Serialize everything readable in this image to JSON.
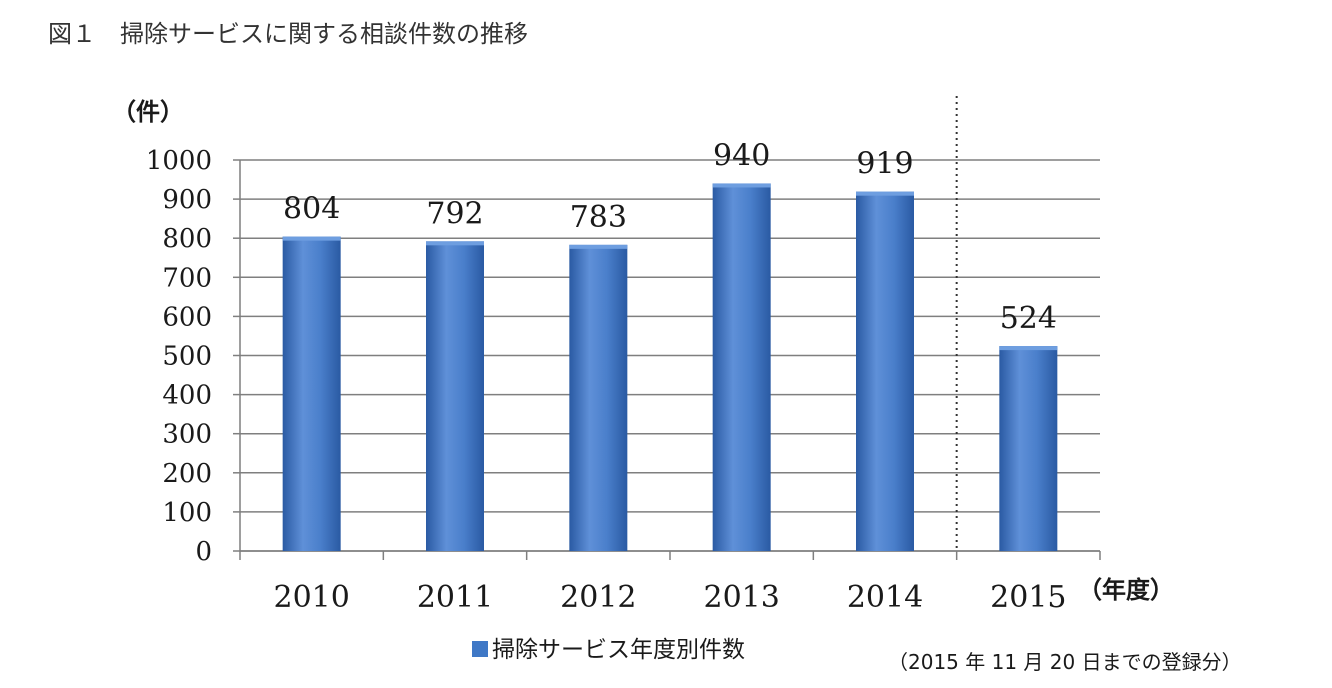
{
  "figure": {
    "caption": "図１　掃除サービスに関する相談件数の推移"
  },
  "note": "（2015 年 11 月 20 日までの登録分）",
  "colors": {
    "bar": "#3f78c6",
    "bar_dark": "#2a5aa3",
    "bar_light": "#6e9ee0",
    "grid": "#7f7f7f",
    "axis": "#7f7f7f",
    "divider": "#333333",
    "text": "#1a1a1a"
  },
  "chart_data": {
    "type": "bar",
    "categories": [
      "2010",
      "2011",
      "2012",
      "2013",
      "2014",
      "2015"
    ],
    "series": [
      {
        "name": "掃除サービス年度別件数",
        "values": [
          804,
          792,
          783,
          940,
          919,
          524
        ]
      }
    ],
    "data_labels": [
      "804",
      "792",
      "783",
      "940",
      "919",
      "524"
    ],
    "ylabel": "（件）",
    "xlabel": "（年度）",
    "ylim": [
      0,
      1000
    ],
    "yticks": [
      0,
      100,
      200,
      300,
      400,
      500,
      600,
      700,
      800,
      900,
      1000
    ],
    "grid": true,
    "legend": {
      "position": "bottom-center",
      "label": "掃除サービス年度別件数"
    },
    "annotation": "dotted divider between 2014 and 2015"
  }
}
